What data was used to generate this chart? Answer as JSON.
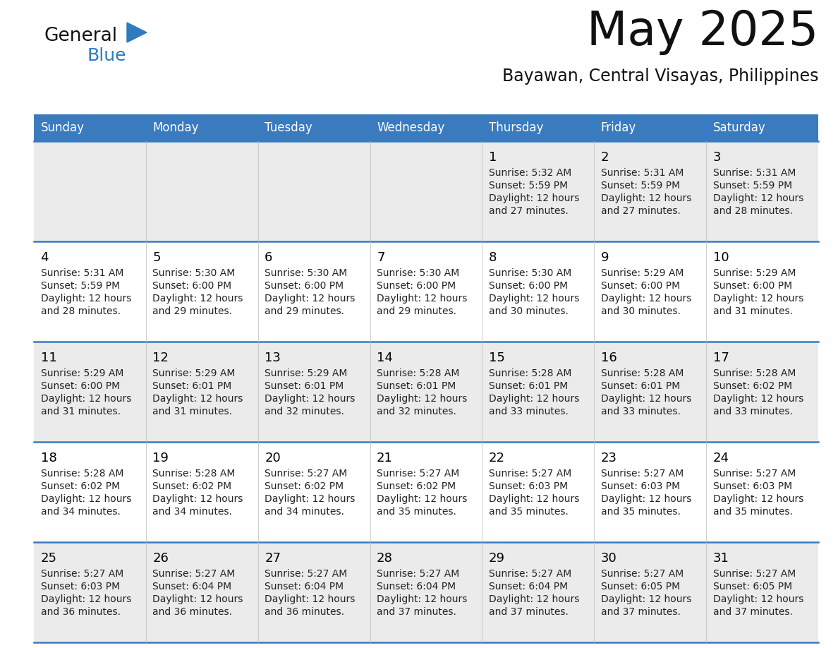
{
  "title": "May 2025",
  "subtitle": "Bayawan, Central Visayas, Philippines",
  "header_color": "#3a7abf",
  "header_text_color": "#ffffff",
  "day_names": [
    "Sunday",
    "Monday",
    "Tuesday",
    "Wednesday",
    "Thursday",
    "Friday",
    "Saturday"
  ],
  "bg_color": "#ffffff",
  "cell_bg_even": "#ebebeb",
  "cell_bg_odd": "#ffffff",
  "grid_line_color": "#3a7abf",
  "day_num_color": "#000000",
  "info_color": "#222222",
  "logo_general_color": "#111111",
  "logo_blue_color": "#2e7bbf",
  "logo_triangle_color": "#2e7bbf",
  "calendar": [
    [
      null,
      null,
      null,
      null,
      {
        "day": 1,
        "sunrise": "5:32 AM",
        "sunset": "5:59 PM",
        "daylight_hours": 12,
        "daylight_mins": 27
      },
      {
        "day": 2,
        "sunrise": "5:31 AM",
        "sunset": "5:59 PM",
        "daylight_hours": 12,
        "daylight_mins": 27
      },
      {
        "day": 3,
        "sunrise": "5:31 AM",
        "sunset": "5:59 PM",
        "daylight_hours": 12,
        "daylight_mins": 28
      }
    ],
    [
      {
        "day": 4,
        "sunrise": "5:31 AM",
        "sunset": "5:59 PM",
        "daylight_hours": 12,
        "daylight_mins": 28
      },
      {
        "day": 5,
        "sunrise": "5:30 AM",
        "sunset": "6:00 PM",
        "daylight_hours": 12,
        "daylight_mins": 29
      },
      {
        "day": 6,
        "sunrise": "5:30 AM",
        "sunset": "6:00 PM",
        "daylight_hours": 12,
        "daylight_mins": 29
      },
      {
        "day": 7,
        "sunrise": "5:30 AM",
        "sunset": "6:00 PM",
        "daylight_hours": 12,
        "daylight_mins": 29
      },
      {
        "day": 8,
        "sunrise": "5:30 AM",
        "sunset": "6:00 PM",
        "daylight_hours": 12,
        "daylight_mins": 30
      },
      {
        "day": 9,
        "sunrise": "5:29 AM",
        "sunset": "6:00 PM",
        "daylight_hours": 12,
        "daylight_mins": 30
      },
      {
        "day": 10,
        "sunrise": "5:29 AM",
        "sunset": "6:00 PM",
        "daylight_hours": 12,
        "daylight_mins": 31
      }
    ],
    [
      {
        "day": 11,
        "sunrise": "5:29 AM",
        "sunset": "6:00 PM",
        "daylight_hours": 12,
        "daylight_mins": 31
      },
      {
        "day": 12,
        "sunrise": "5:29 AM",
        "sunset": "6:01 PM",
        "daylight_hours": 12,
        "daylight_mins": 31
      },
      {
        "day": 13,
        "sunrise": "5:29 AM",
        "sunset": "6:01 PM",
        "daylight_hours": 12,
        "daylight_mins": 32
      },
      {
        "day": 14,
        "sunrise": "5:28 AM",
        "sunset": "6:01 PM",
        "daylight_hours": 12,
        "daylight_mins": 32
      },
      {
        "day": 15,
        "sunrise": "5:28 AM",
        "sunset": "6:01 PM",
        "daylight_hours": 12,
        "daylight_mins": 33
      },
      {
        "day": 16,
        "sunrise": "5:28 AM",
        "sunset": "6:01 PM",
        "daylight_hours": 12,
        "daylight_mins": 33
      },
      {
        "day": 17,
        "sunrise": "5:28 AM",
        "sunset": "6:02 PM",
        "daylight_hours": 12,
        "daylight_mins": 33
      }
    ],
    [
      {
        "day": 18,
        "sunrise": "5:28 AM",
        "sunset": "6:02 PM",
        "daylight_hours": 12,
        "daylight_mins": 34
      },
      {
        "day": 19,
        "sunrise": "5:28 AM",
        "sunset": "6:02 PM",
        "daylight_hours": 12,
        "daylight_mins": 34
      },
      {
        "day": 20,
        "sunrise": "5:27 AM",
        "sunset": "6:02 PM",
        "daylight_hours": 12,
        "daylight_mins": 34
      },
      {
        "day": 21,
        "sunrise": "5:27 AM",
        "sunset": "6:02 PM",
        "daylight_hours": 12,
        "daylight_mins": 35
      },
      {
        "day": 22,
        "sunrise": "5:27 AM",
        "sunset": "6:03 PM",
        "daylight_hours": 12,
        "daylight_mins": 35
      },
      {
        "day": 23,
        "sunrise": "5:27 AM",
        "sunset": "6:03 PM",
        "daylight_hours": 12,
        "daylight_mins": 35
      },
      {
        "day": 24,
        "sunrise": "5:27 AM",
        "sunset": "6:03 PM",
        "daylight_hours": 12,
        "daylight_mins": 35
      }
    ],
    [
      {
        "day": 25,
        "sunrise": "5:27 AM",
        "sunset": "6:03 PM",
        "daylight_hours": 12,
        "daylight_mins": 36
      },
      {
        "day": 26,
        "sunrise": "5:27 AM",
        "sunset": "6:04 PM",
        "daylight_hours": 12,
        "daylight_mins": 36
      },
      {
        "day": 27,
        "sunrise": "5:27 AM",
        "sunset": "6:04 PM",
        "daylight_hours": 12,
        "daylight_mins": 36
      },
      {
        "day": 28,
        "sunrise": "5:27 AM",
        "sunset": "6:04 PM",
        "daylight_hours": 12,
        "daylight_mins": 37
      },
      {
        "day": 29,
        "sunrise": "5:27 AM",
        "sunset": "6:04 PM",
        "daylight_hours": 12,
        "daylight_mins": 37
      },
      {
        "day": 30,
        "sunrise": "5:27 AM",
        "sunset": "6:05 PM",
        "daylight_hours": 12,
        "daylight_mins": 37
      },
      {
        "day": 31,
        "sunrise": "5:27 AM",
        "sunset": "6:05 PM",
        "daylight_hours": 12,
        "daylight_mins": 37
      }
    ]
  ]
}
